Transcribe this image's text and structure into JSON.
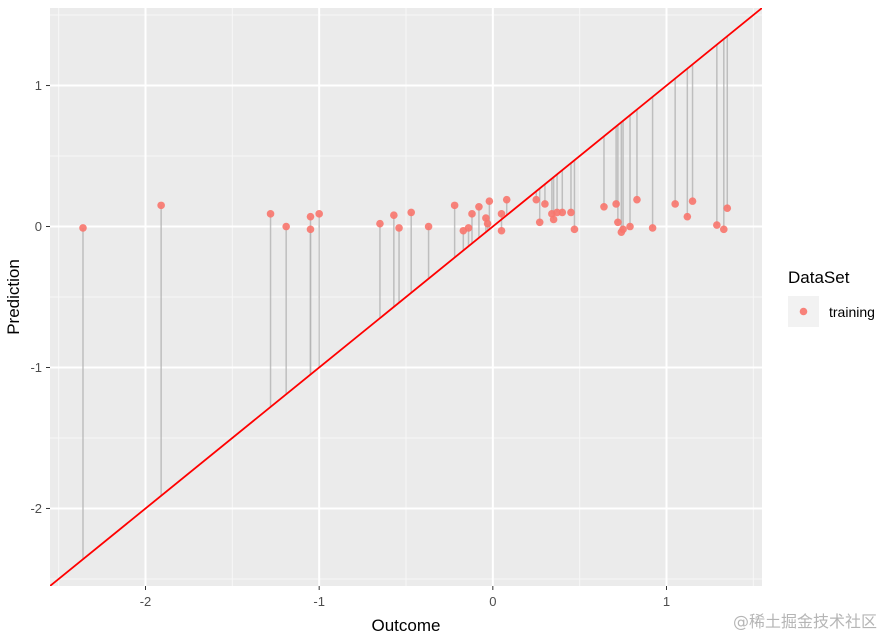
{
  "chart_data": {
    "type": "scatter",
    "title": "",
    "xlabel": "Outcome",
    "ylabel": "Prediction",
    "xlim": [
      -2.55,
      1.55
    ],
    "ylim": [
      -2.55,
      1.55
    ],
    "x_ticks": [
      {
        "value": -2,
        "label": "-2"
      },
      {
        "value": -1,
        "label": "-1"
      },
      {
        "value": 0,
        "label": "0"
      },
      {
        "value": 1,
        "label": "1"
      }
    ],
    "y_ticks": [
      {
        "value": -2,
        "label": "-2"
      },
      {
        "value": -1,
        "label": "-1"
      },
      {
        "value": 0,
        "label": "0"
      },
      {
        "value": 1,
        "label": "1"
      }
    ],
    "grid": true,
    "reference_line": {
      "intercept": 0,
      "slope": 1,
      "color": "#ff0000"
    },
    "residual_segments": true,
    "legend": {
      "title": "DataSet",
      "position": "right"
    },
    "series": [
      {
        "name": "training",
        "color": "#f8766d",
        "x": [
          -2.36,
          -1.91,
          -1.28,
          -1.19,
          -1.05,
          -1.05,
          -1.0,
          -0.65,
          -0.57,
          -0.54,
          -0.47,
          -0.37,
          -0.22,
          -0.17,
          -0.14,
          -0.12,
          -0.08,
          -0.04,
          -0.03,
          -0.02,
          0.05,
          0.05,
          0.08,
          0.25,
          0.27,
          0.3,
          0.34,
          0.35,
          0.37,
          0.4,
          0.45,
          0.47,
          0.64,
          0.71,
          0.72,
          0.74,
          0.75,
          0.79,
          0.83,
          0.92,
          1.05,
          1.12,
          1.15,
          1.29,
          1.33,
          1.35
        ],
        "y": [
          -0.01,
          0.15,
          0.09,
          0.0,
          0.07,
          -0.02,
          0.09,
          0.02,
          0.08,
          -0.01,
          0.1,
          0.0,
          0.15,
          -0.03,
          -0.01,
          0.09,
          0.14,
          0.06,
          0.02,
          0.18,
          0.09,
          -0.03,
          0.19,
          0.19,
          0.03,
          0.16,
          0.09,
          0.05,
          0.1,
          0.1,
          0.1,
          -0.02,
          0.14,
          0.16,
          0.03,
          -0.04,
          -0.02,
          0.0,
          0.19,
          -0.01,
          0.16,
          0.07,
          0.18,
          0.01,
          -0.02,
          0.13
        ]
      }
    ]
  },
  "watermark": "@稀土掘金技术社区"
}
